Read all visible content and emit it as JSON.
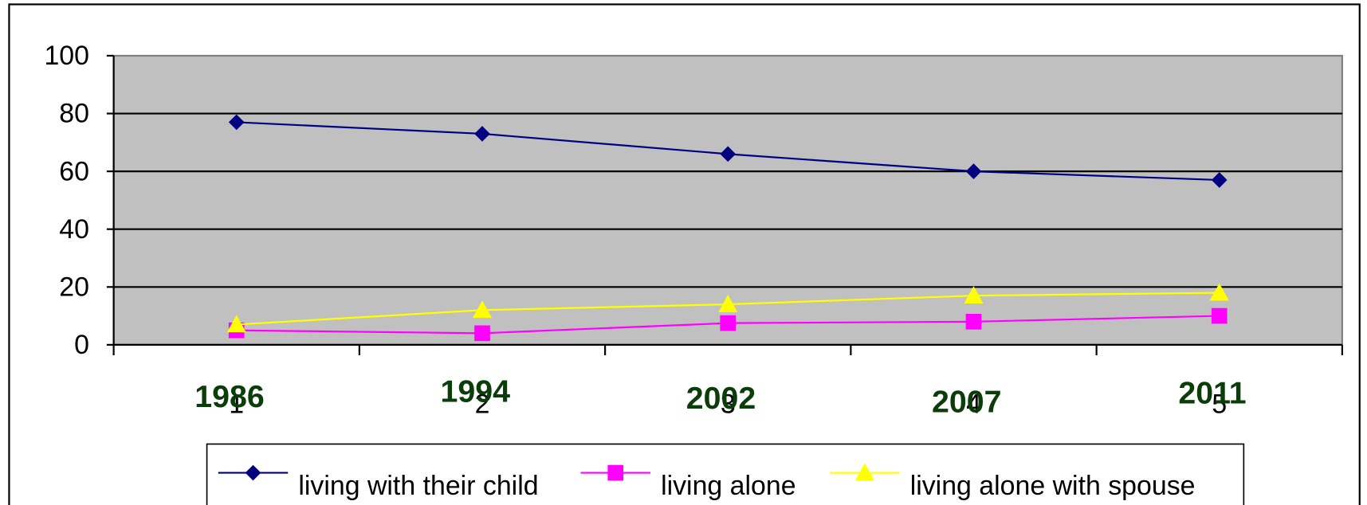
{
  "chart_data": {
    "type": "line",
    "categories": [
      "1",
      "2",
      "3",
      "4",
      "5"
    ],
    "year_labels": [
      "1986",
      "1994",
      "2002",
      "2007",
      "2011"
    ],
    "series": [
      {
        "name": "living with their child",
        "color": "#000080",
        "marker": "diamond",
        "values": [
          77,
          73,
          66,
          60,
          57
        ]
      },
      {
        "name": "living alone",
        "color": "#ff00ff",
        "marker": "square",
        "values": [
          5,
          4,
          7.5,
          8,
          10
        ]
      },
      {
        "name": "living alone with spouse",
        "color": "#ffff00",
        "marker": "triangle",
        "values": [
          7,
          12,
          14,
          17,
          18
        ]
      }
    ],
    "ylim": [
      0,
      100
    ],
    "yticks": [
      0,
      20,
      40,
      60,
      80,
      100
    ],
    "grid": true
  }
}
